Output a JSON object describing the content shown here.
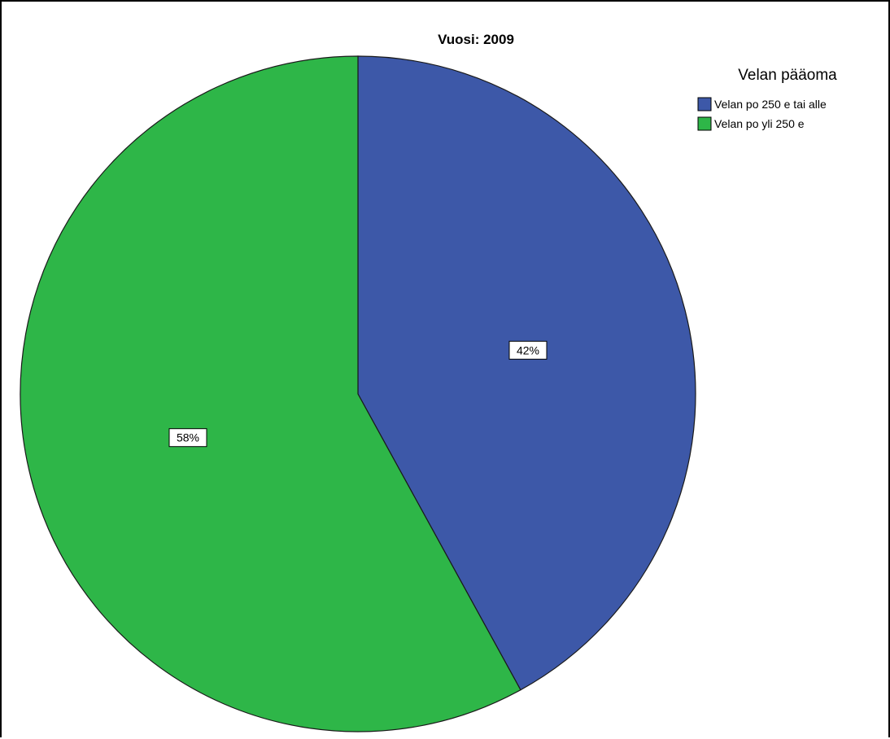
{
  "chart_data": {
    "type": "pie",
    "title": "Vuosi: 2009",
    "legend_title": "Velan pääoma",
    "legend_position": "top-right",
    "slices": [
      {
        "label": "Velan po 250 e tai alle",
        "value": 42,
        "value_label": "42%",
        "color": "#3d58a8"
      },
      {
        "label": "Velan po yli 250 e",
        "value": 58,
        "value_label": "58%",
        "color": "#2eb648"
      }
    ]
  }
}
